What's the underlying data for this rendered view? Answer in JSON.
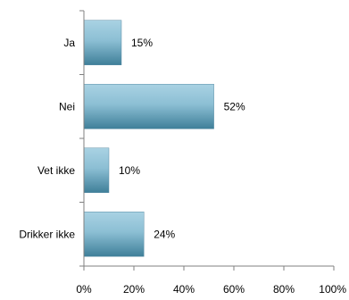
{
  "chart_data": {
    "type": "bar",
    "orientation": "horizontal",
    "title": "",
    "xlabel": "",
    "ylabel": "",
    "categories": [
      "Ja",
      "Nei",
      "Vet ikke",
      "Drikker ikke"
    ],
    "values": [
      15,
      52,
      10,
      24
    ],
    "data_labels": [
      "15%",
      "52%",
      "10%",
      "24%"
    ],
    "xlim": [
      0,
      100
    ],
    "x_ticks": [
      0,
      20,
      40,
      60,
      80,
      100
    ],
    "x_tick_labels": [
      "0%",
      "20%",
      "40%",
      "60%",
      "80%",
      "100%"
    ],
    "grid": false,
    "legend": "none",
    "bar_color_top": "#a9d2e3",
    "bar_color_bottom": "#3f7f99"
  }
}
